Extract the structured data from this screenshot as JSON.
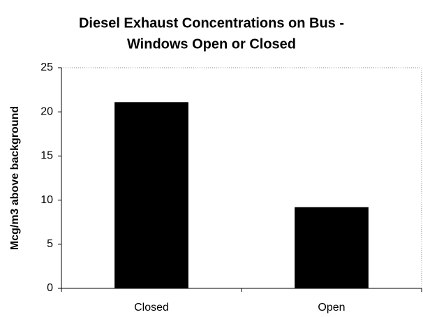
{
  "chart_data": {
    "type": "bar",
    "title": [
      "Diesel Exhaust Concentrations on Bus -",
      "Windows Open or Closed"
    ],
    "y_label": "Mcg/m3 above background",
    "categories": [
      "Closed",
      "Open"
    ],
    "values": [
      21.1,
      9.2
    ],
    "color": "#000000",
    "ylim": [
      0,
      25
    ],
    "yticks": [
      0,
      5,
      10,
      15,
      20,
      25
    ],
    "grid": false
  }
}
